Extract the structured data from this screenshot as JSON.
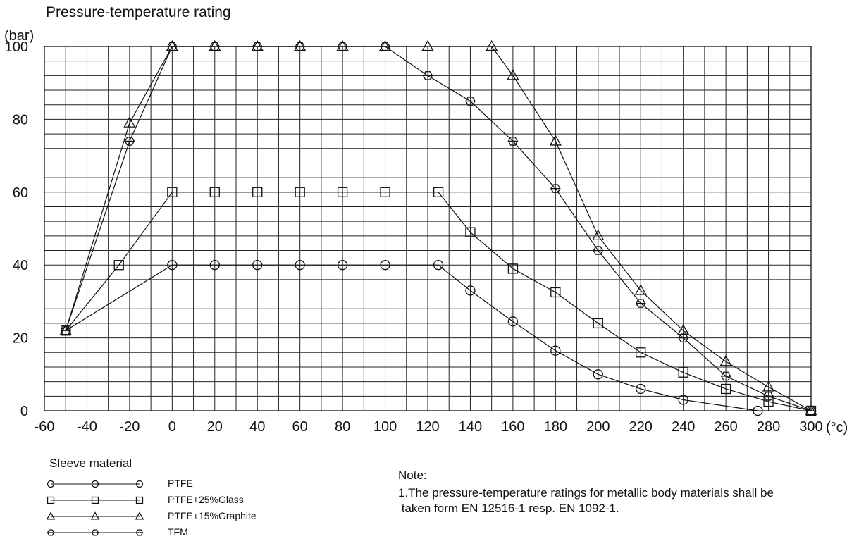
{
  "chart_data": {
    "type": "line",
    "title": "Pressure-temperature rating",
    "ylabel": "(bar)",
    "xlabel": "(°c)",
    "xlim": [
      -60,
      300
    ],
    "ylim": [
      0,
      100
    ],
    "x_ticks": [
      -60,
      -40,
      -20,
      0,
      20,
      40,
      60,
      80,
      100,
      120,
      140,
      160,
      180,
      200,
      220,
      240,
      260,
      280,
      300
    ],
    "y_ticks": [
      0,
      20,
      40,
      60,
      80,
      100
    ],
    "grid": true,
    "legend_title": "Sleeve material",
    "legend_position": "bottom-left",
    "series": [
      {
        "name": "PTFE",
        "marker": "circle",
        "x": [
          -50,
          0,
          20,
          40,
          60,
          80,
          100,
          125,
          140,
          160,
          180,
          200,
          220,
          240,
          275
        ],
        "y": [
          22,
          40,
          40,
          40,
          40,
          40,
          40,
          40,
          33,
          24.5,
          16.5,
          10,
          6,
          3,
          0
        ]
      },
      {
        "name": "PTFE+25%Glass",
        "marker": "square",
        "x": [
          -50,
          -25,
          0,
          20,
          40,
          60,
          80,
          100,
          125,
          140,
          160,
          180,
          200,
          220,
          240,
          260,
          280,
          300
        ],
        "y": [
          22,
          40,
          60,
          60,
          60,
          60,
          60,
          60,
          60,
          49,
          39,
          32.5,
          24,
          16,
          10.5,
          6,
          2.5,
          0
        ]
      },
      {
        "name": "PTFE+15%Graphite",
        "marker": "triangle",
        "x": [
          -50,
          -20,
          0,
          20,
          40,
          60,
          80,
          100,
          120,
          150,
          160,
          180,
          200,
          220,
          240,
          260,
          280,
          300
        ],
        "y": [
          22,
          79,
          100,
          100,
          100,
          100,
          100,
          100,
          100,
          100,
          92,
          74,
          48,
          33,
          22,
          13.5,
          6.5,
          0
        ]
      },
      {
        "name": "TFM",
        "marker": "hexagon",
        "x": [
          -50,
          -20,
          0,
          20,
          40,
          60,
          80,
          100,
          120,
          140,
          160,
          180,
          200,
          220,
          240,
          260,
          280,
          300
        ],
        "y": [
          22,
          74,
          100,
          100,
          100,
          100,
          100,
          100,
          92,
          85,
          74,
          61,
          44,
          29.5,
          20,
          9.5,
          4,
          0
        ]
      }
    ],
    "note": {
      "title": "Note:",
      "lines": [
        "1.The pressure-temperature ratings for metallic body materials shall be",
        " taken form EN 12516-1 resp. EN 1092-1."
      ]
    }
  }
}
